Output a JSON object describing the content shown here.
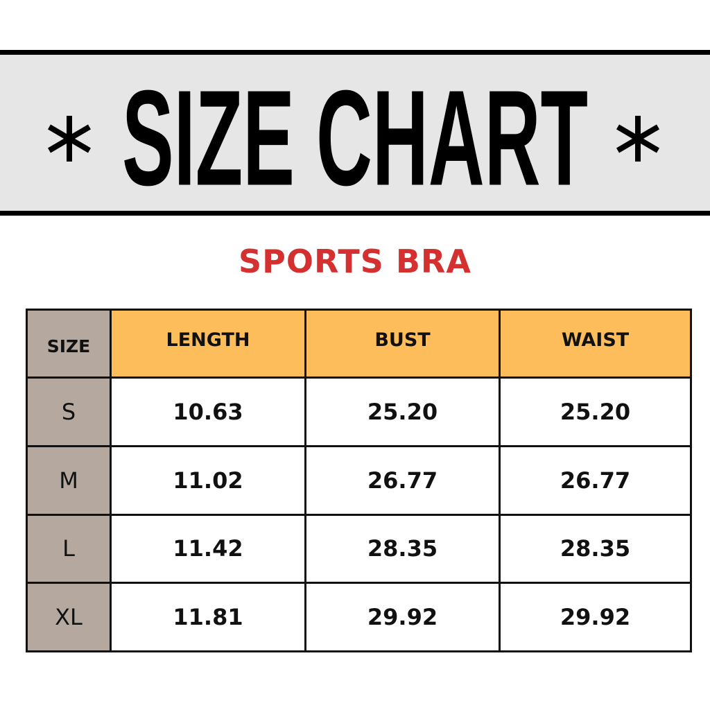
{
  "header": {
    "title": "SIZE CHART",
    "decoration_icon": "asterisk-icon"
  },
  "subtitle": "SPORTS BRA",
  "colors": {
    "header_cell": "#fdbd5a",
    "size_column": "#b5a89e",
    "subtitle": "#d3302f",
    "banner": "#e6e6e6"
  },
  "table": {
    "columns": [
      "SIZE",
      "LENGTH",
      "BUST",
      "WAIST"
    ],
    "rows": [
      [
        "S",
        "10.63",
        "25.20",
        "25.20"
      ],
      [
        "M",
        "11.02",
        "26.77",
        "26.77"
      ],
      [
        "L",
        "11.42",
        "28.35",
        "28.35"
      ],
      [
        "XL",
        "11.81",
        "29.92",
        "29.92"
      ]
    ]
  }
}
